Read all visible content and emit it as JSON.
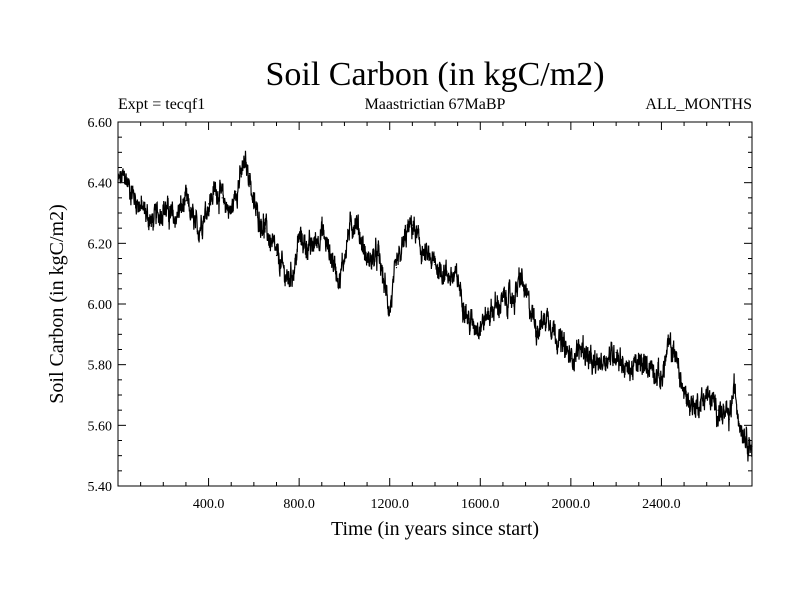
{
  "chart_data": {
    "type": "line",
    "title": "Soil Carbon (in kgC/m2)",
    "expt_label": "Expt = tecqf1",
    "subtitle": "Maastrictian 67MaBP",
    "months_label": "ALL_MONTHS",
    "xlabel": "Time (in years since start)",
    "ylabel": "Soil Carbon (in kgC/m2)",
    "xlim": [
      0,
      2800
    ],
    "ylim": [
      5.4,
      6.6
    ],
    "xticks": [
      400,
      800,
      1200,
      1600,
      2000,
      2400
    ],
    "xtick_labels": [
      "400.0",
      "800.0",
      "1200.0",
      "1600.0",
      "2000.0",
      "2400.0"
    ],
    "yticks": [
      5.4,
      5.6,
      5.8,
      6.0,
      6.2,
      6.4,
      6.6
    ],
    "ytick_labels": [
      "5.40",
      "5.60",
      "5.80",
      "6.00",
      "6.20",
      "6.40",
      "6.60"
    ],
    "series": [
      {
        "name": "Soil Carbon",
        "color": "#000000",
        "x": [
          0,
          30,
          60,
          100,
          150,
          200,
          250,
          300,
          350,
          400,
          430,
          460,
          500,
          520,
          560,
          580,
          600,
          650,
          700,
          750,
          780,
          800,
          850,
          900,
          950,
          980,
          1020,
          1050,
          1100,
          1150,
          1200,
          1230,
          1280,
          1300,
          1350,
          1400,
          1450,
          1500,
          1550,
          1600,
          1650,
          1700,
          1750,
          1780,
          1800,
          1850,
          1900,
          1950,
          2000,
          2050,
          2100,
          2150,
          2200,
          2250,
          2300,
          2350,
          2400,
          2430,
          2460,
          2500,
          2550,
          2600,
          2650,
          2700,
          2720,
          2750,
          2800
        ],
        "y": [
          6.4,
          6.42,
          6.37,
          6.32,
          6.27,
          6.32,
          6.28,
          6.34,
          6.24,
          6.33,
          6.38,
          6.35,
          6.3,
          6.37,
          6.46,
          6.43,
          6.32,
          6.25,
          6.16,
          6.08,
          6.12,
          6.22,
          6.18,
          6.24,
          6.14,
          6.08,
          6.24,
          6.28,
          6.14,
          6.16,
          5.98,
          6.12,
          6.24,
          6.26,
          6.16,
          6.13,
          6.1,
          6.08,
          5.94,
          5.93,
          5.98,
          6.01,
          6.02,
          6.09,
          6.03,
          5.92,
          5.96,
          5.88,
          5.82,
          5.86,
          5.79,
          5.82,
          5.84,
          5.78,
          5.8,
          5.8,
          5.75,
          5.86,
          5.84,
          5.7,
          5.66,
          5.7,
          5.65,
          5.62,
          5.72,
          5.6,
          5.53
        ]
      }
    ]
  }
}
